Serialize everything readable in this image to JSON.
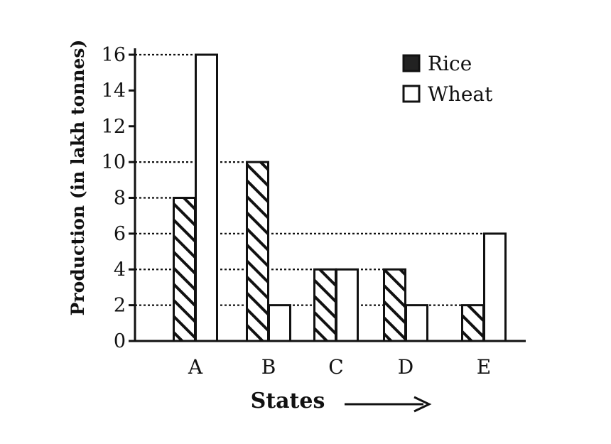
{
  "chart_data": {
    "type": "bar",
    "categories": [
      "A",
      "B",
      "C",
      "D",
      "E"
    ],
    "series": [
      {
        "name": "Rice",
        "values": [
          8,
          10,
          4,
          4,
          2
        ],
        "pattern": "hatch"
      },
      {
        "name": "Wheat",
        "values": [
          16,
          2,
          4,
          2,
          6
        ],
        "pattern": "plain"
      }
    ],
    "xlabel": "States",
    "ylabel": "Production (in lakh tonnes)",
    "ylim": [
      0,
      16
    ],
    "yticks": [
      0,
      2,
      4,
      6,
      8,
      10,
      12,
      14,
      16
    ],
    "reference_lines": [
      16,
      10,
      8,
      6,
      4,
      2
    ],
    "legend_position": "top-right",
    "colors": {
      "stroke": "#111111",
      "fill": "#ffffff"
    }
  }
}
